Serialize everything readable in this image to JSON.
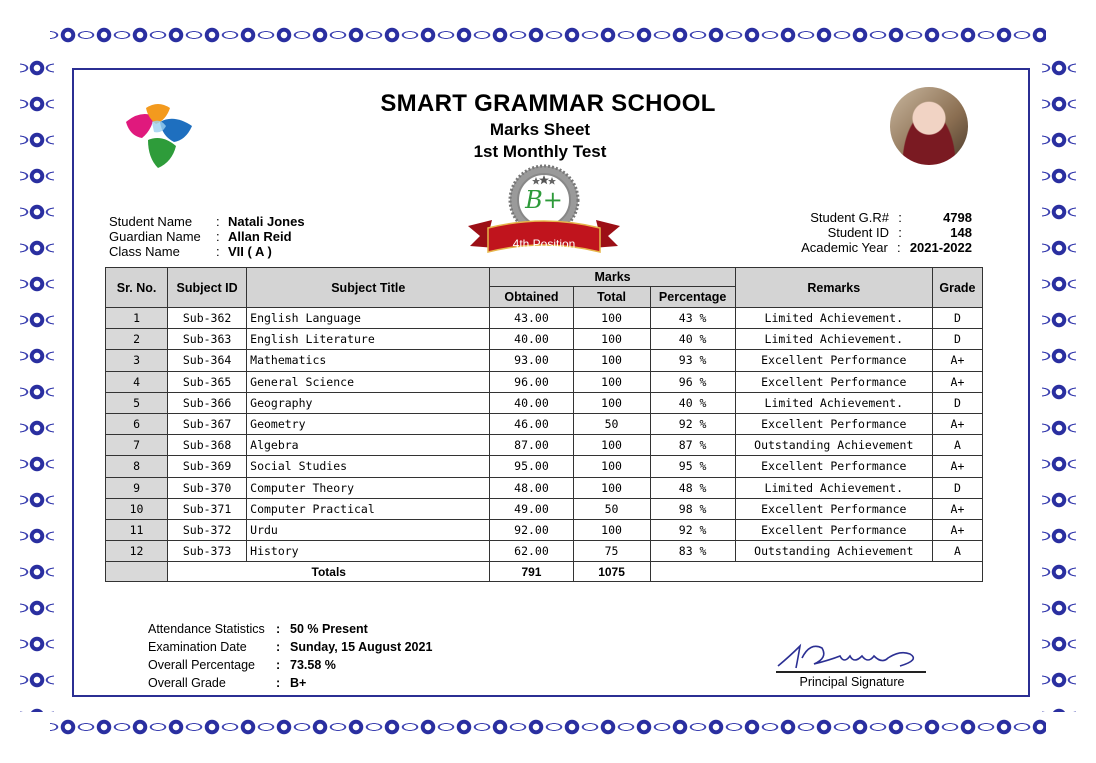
{
  "header": {
    "school_name": "SMART GRAMMAR SCHOOL",
    "document_title": "Marks Sheet",
    "test_name": "1st Monthly Test",
    "badge_grade": "B+",
    "badge_position": "4th Position"
  },
  "student_info_left": [
    {
      "label": "Student Name",
      "value": "Natali Jones"
    },
    {
      "label": "Guardian Name",
      "value": "Allan Reid"
    },
    {
      "label": "Class Name",
      "value": "VII ( A )"
    }
  ],
  "student_info_right": [
    {
      "label": "Student G.R#",
      "value": "4798"
    },
    {
      "label": "Student ID",
      "value": "148"
    },
    {
      "label": "Academic Year",
      "value": "2021-2022"
    }
  ],
  "table": {
    "headers": {
      "sr_no": "Sr. No.",
      "subject_id": "Subject ID",
      "subject_title": "Subject Title",
      "marks": "Marks",
      "obtained": "Obtained",
      "total": "Total",
      "percentage": "Percentage",
      "remarks": "Remarks",
      "grade": "Grade"
    },
    "rows": [
      {
        "sr": "1",
        "id": "Sub-362",
        "title": "English Language",
        "obtained": "43.00",
        "total": "100",
        "percentage": "43 %",
        "remarks": "Limited Achievement.",
        "grade": "D"
      },
      {
        "sr": "2",
        "id": "Sub-363",
        "title": "English Literature",
        "obtained": "40.00",
        "total": "100",
        "percentage": "40 %",
        "remarks": "Limited Achievement.",
        "grade": "D"
      },
      {
        "sr": "3",
        "id": "Sub-364",
        "title": "Mathematics",
        "obtained": "93.00",
        "total": "100",
        "percentage": "93 %",
        "remarks": "Excellent Performance",
        "grade": "A+"
      },
      {
        "sr": "4",
        "id": "Sub-365",
        "title": "General Science",
        "obtained": "96.00",
        "total": "100",
        "percentage": "96 %",
        "remarks": "Excellent Performance",
        "grade": "A+"
      },
      {
        "sr": "5",
        "id": "Sub-366",
        "title": "Geography",
        "obtained": "40.00",
        "total": "100",
        "percentage": "40 %",
        "remarks": "Limited Achievement.",
        "grade": "D"
      },
      {
        "sr": "6",
        "id": "Sub-367",
        "title": "Geometry",
        "obtained": "46.00",
        "total": "50",
        "percentage": "92 %",
        "remarks": "Excellent Performance",
        "grade": "A+"
      },
      {
        "sr": "7",
        "id": "Sub-368",
        "title": "Algebra",
        "obtained": "87.00",
        "total": "100",
        "percentage": "87 %",
        "remarks": "Outstanding Achievement",
        "grade": "A"
      },
      {
        "sr": "8",
        "id": "Sub-369",
        "title": "Social Studies",
        "obtained": "95.00",
        "total": "100",
        "percentage": "95 %",
        "remarks": "Excellent Performance",
        "grade": "A+"
      },
      {
        "sr": "9",
        "id": "Sub-370",
        "title": "Computer Theory",
        "obtained": "48.00",
        "total": "100",
        "percentage": "48 %",
        "remarks": "Limited Achievement.",
        "grade": "D"
      },
      {
        "sr": "10",
        "id": "Sub-371",
        "title": "Computer Practical",
        "obtained": "49.00",
        "total": "50",
        "percentage": "98 %",
        "remarks": "Excellent Performance",
        "grade": "A+"
      },
      {
        "sr": "11",
        "id": "Sub-372",
        "title": "Urdu",
        "obtained": "92.00",
        "total": "100",
        "percentage": "92 %",
        "remarks": "Excellent Performance",
        "grade": "A+"
      },
      {
        "sr": "12",
        "id": "Sub-373",
        "title": "History",
        "obtained": "62.00",
        "total": "75",
        "percentage": "83 %",
        "remarks": "Outstanding Achievement",
        "grade": "A"
      }
    ],
    "totals": {
      "label": "Totals",
      "obtained": "791",
      "total": "1075"
    }
  },
  "summary": [
    {
      "label": "Attendance Statistics",
      "value": "50 % Present"
    },
    {
      "label": "Examination Date",
      "value": "Sunday, 15 August 2021"
    },
    {
      "label": "Overall Percentage",
      "value": "73.58 %"
    },
    {
      "label": "Overall Grade",
      "value": "B+"
    }
  ],
  "signature": {
    "label": "Principal Signature"
  },
  "colors": {
    "border_blue": "#2b2f93",
    "ribbon_red": "#b3121b",
    "header_gray": "#d4d4d4"
  }
}
